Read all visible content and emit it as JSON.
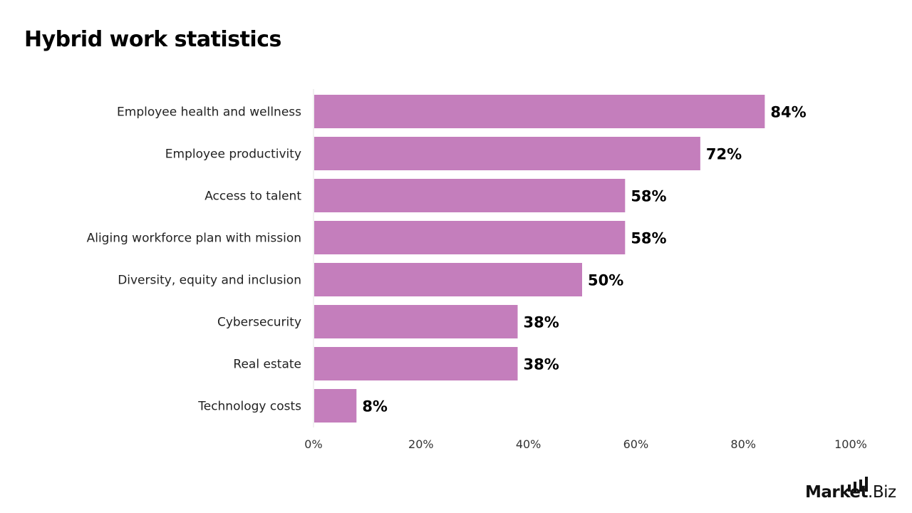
{
  "chart_data": {
    "type": "bar",
    "orientation": "horizontal",
    "title": "Hybrid work statistics",
    "categories": [
      "Employee health and wellness",
      "Employee productivity",
      "Access to talent",
      "Aliging workforce plan with mission",
      "Diversity, equity and inclusion",
      "Cybersecurity",
      "Real estate",
      "Technology costs"
    ],
    "values": [
      84,
      72,
      58,
      58,
      50,
      38,
      38,
      8
    ],
    "data_labels": [
      "84%",
      "72%",
      "58%",
      "58%",
      "50%",
      "38%",
      "38%",
      "8%"
    ],
    "xlim": [
      0,
      100
    ],
    "x_ticks": [
      "0%",
      "20%",
      "40%",
      "60%",
      "80%",
      "100%"
    ],
    "grid": false,
    "bar_color": "#C47EBC"
  },
  "logo": {
    "text_bold": "Market",
    "text_light": ".Biz"
  }
}
